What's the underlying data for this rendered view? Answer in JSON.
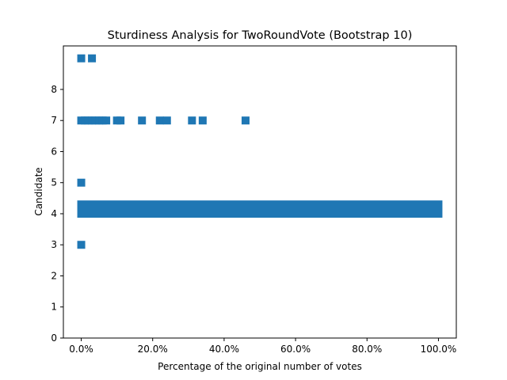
{
  "chart_data": {
    "type": "scatter",
    "title": "Sturdiness Analysis for TwoRoundVote (Bootstrap 10)",
    "xlabel": "Percentage of the original number of votes",
    "ylabel": "Candidate",
    "xlim": [
      -0.05,
      1.05
    ],
    "ylim": [
      0,
      9.4
    ],
    "grid": false,
    "legend": "none",
    "marker": "square",
    "color": "#1f77b4",
    "x_ticks": [
      {
        "value": 0.0,
        "label": "0.0%"
      },
      {
        "value": 0.2,
        "label": "20.0%"
      },
      {
        "value": 0.4,
        "label": "40.0%"
      },
      {
        "value": 0.6,
        "label": "60.0%"
      },
      {
        "value": 0.8,
        "label": "80.0%"
      },
      {
        "value": 1.0,
        "label": "100.0%"
      }
    ],
    "y_ticks": [
      {
        "value": 0,
        "label": "0"
      },
      {
        "value": 1,
        "label": "1"
      },
      {
        "value": 2,
        "label": "2"
      },
      {
        "value": 3,
        "label": "3"
      },
      {
        "value": 4,
        "label": "4"
      },
      {
        "value": 5,
        "label": "5"
      },
      {
        "value": 6,
        "label": "6"
      },
      {
        "value": 7,
        "label": "7"
      },
      {
        "value": 8,
        "label": "8"
      }
    ],
    "dense_band": {
      "y": 4,
      "y_spread": 0.3,
      "x_start": 0.0,
      "x_end": 1.0
    },
    "points": [
      {
        "x": 0.0,
        "y": 9
      },
      {
        "x": 0.03,
        "y": 9
      },
      {
        "x": 0.0,
        "y": 7
      },
      {
        "x": 0.01,
        "y": 7
      },
      {
        "x": 0.02,
        "y": 7
      },
      {
        "x": 0.03,
        "y": 7
      },
      {
        "x": 0.04,
        "y": 7
      },
      {
        "x": 0.05,
        "y": 7
      },
      {
        "x": 0.06,
        "y": 7
      },
      {
        "x": 0.07,
        "y": 7
      },
      {
        "x": 0.1,
        "y": 7
      },
      {
        "x": 0.11,
        "y": 7
      },
      {
        "x": 0.17,
        "y": 7
      },
      {
        "x": 0.22,
        "y": 7
      },
      {
        "x": 0.24,
        "y": 7
      },
      {
        "x": 0.31,
        "y": 7
      },
      {
        "x": 0.34,
        "y": 7
      },
      {
        "x": 0.46,
        "y": 7
      },
      {
        "x": 0.0,
        "y": 5
      },
      {
        "x": 0.0,
        "y": 3
      }
    ]
  }
}
